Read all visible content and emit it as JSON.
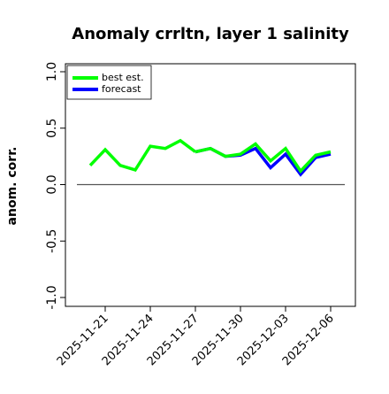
{
  "chart_data": {
    "type": "line",
    "title": "Anomaly crrltn, layer 1 salinity",
    "xlabel": "",
    "ylabel": "anom. corr.",
    "ylim": [
      -1.0,
      1.0
    ],
    "yticks": [
      "-1.0",
      "-0.5",
      "0.0",
      "0.5",
      "1.0"
    ],
    "x": [
      "2025-11-20",
      "2025-11-21",
      "2025-11-22",
      "2025-11-23",
      "2025-11-24",
      "2025-11-25",
      "2025-11-26",
      "2025-11-27",
      "2025-11-28",
      "2025-11-29",
      "2025-11-30",
      "2025-12-01",
      "2025-12-02",
      "2025-12-03",
      "2025-12-04",
      "2025-12-05",
      "2025-12-06"
    ],
    "xtick_labels": [
      {
        "label": "2025-11-21",
        "color": "#000000"
      },
      {
        "label": "2025-11-24",
        "color": "#000000"
      },
      {
        "label": "2025-11-27",
        "color": "#228B22"
      },
      {
        "label": "2025-11-30",
        "color": "#000000"
      },
      {
        "label": "2025-12-03",
        "color": "#000000"
      },
      {
        "label": "2025-12-06",
        "color": "#000000"
      }
    ],
    "hline": 0.0,
    "grid": false,
    "legend_position": "top-left",
    "series": [
      {
        "name": "best est.",
        "color": "#00ff00",
        "x": [
          "2025-11-20",
          "2025-11-21",
          "2025-11-22",
          "2025-11-23",
          "2025-11-24",
          "2025-11-25",
          "2025-11-26",
          "2025-11-27"
        ],
        "values": [
          0.17,
          0.31,
          0.17,
          0.13,
          0.34,
          0.32,
          0.39,
          0.29
        ]
      },
      {
        "name": "forecast",
        "color": "#0000ff",
        "x": [
          "2025-11-27",
          "2025-11-28",
          "2025-11-29",
          "2025-11-30",
          "2025-12-01",
          "2025-12-02",
          "2025-12-03",
          "2025-12-04",
          "2025-12-05",
          "2025-12-06"
        ],
        "values": [
          0.29,
          0.32,
          0.25,
          0.26,
          0.32,
          0.15,
          0.27,
          0.09,
          0.24,
          0.27
        ]
      },
      {
        "name": "best est.",
        "color": "#00ff00",
        "x": [
          "2025-11-27",
          "2025-11-28",
          "2025-11-29",
          "2025-11-30",
          "2025-12-01",
          "2025-12-02",
          "2025-12-03",
          "2025-12-04",
          "2025-12-05",
          "2025-12-06"
        ],
        "values": [
          0.29,
          0.32,
          0.25,
          0.27,
          0.36,
          0.21,
          0.32,
          0.12,
          0.26,
          0.29
        ]
      }
    ]
  }
}
